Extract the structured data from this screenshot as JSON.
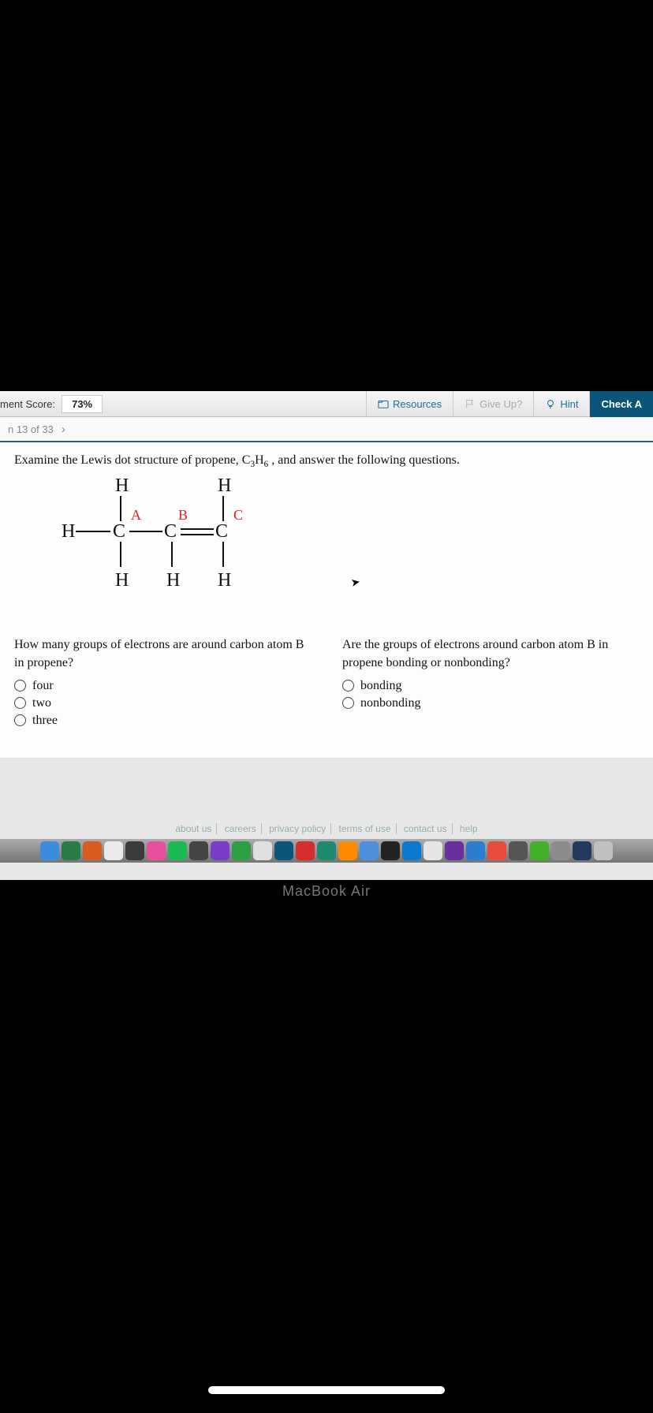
{
  "topbar": {
    "score_label": "ment Score:",
    "score_value": "73%",
    "resources": "Resources",
    "giveup": "Give Up?",
    "hint": "Hint",
    "check": "Check A"
  },
  "subbar": {
    "position": "n 13 of 33"
  },
  "intro_prefix": "Examine the Lewis dot structure of propene, C",
  "intro_sub1": "3",
  "intro_mid": "H",
  "intro_sub2": "6",
  "intro_suffix": " , and answer the following questions.",
  "lewis": {
    "atoms": {
      "H_tl": "H",
      "H_tr": "H",
      "H_l": "H",
      "C_a": "C",
      "C_b": "C",
      "C_c": "C",
      "H_bl": "H",
      "H_bm": "H",
      "H_br": "H"
    },
    "labels": {
      "A": "A",
      "B": "B",
      "C": "C"
    }
  },
  "q1": {
    "text": "How many groups of electrons are around carbon atom B in propene?",
    "opts": [
      "four",
      "two",
      "three"
    ]
  },
  "q2": {
    "text": "Are the groups of electrons around carbon atom B in propene bonding or nonbonding?",
    "opts": [
      "bonding",
      "nonbonding"
    ]
  },
  "footer": [
    "about us",
    "careers",
    "privacy policy",
    "terms of use",
    "contact us",
    "help"
  ],
  "mac": "MacBook Air",
  "dock_colors": [
    "#3a8dde",
    "#2a7a4a",
    "#d85c1e",
    "#eaeaea",
    "#3a3a3a",
    "#e84f9c",
    "#1db954",
    "#444",
    "#7a3cc9",
    "#2e9e44",
    "#e0e0e0",
    "#0a5578",
    "#d62e2e",
    "#1f8a70",
    "#ff8a00",
    "#4f8edc",
    "#222",
    "#0b79d0",
    "#e6e6e6",
    "#6a2e9e",
    "#2d7dd2",
    "#e74c3c",
    "#555",
    "#43b02a",
    "#8c8c8c",
    "#223a5e",
    "#c0c0c0"
  ]
}
